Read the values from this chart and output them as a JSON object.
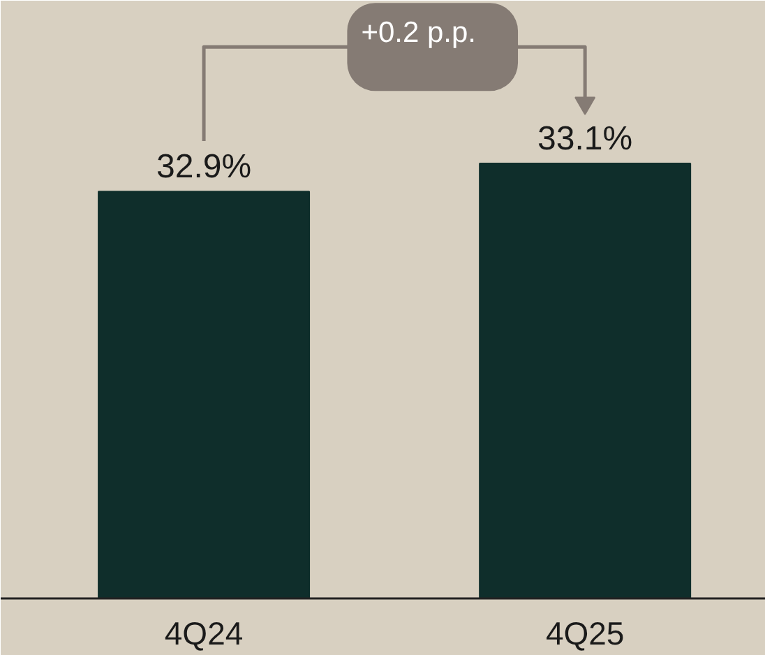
{
  "chart_data": {
    "type": "bar",
    "categories": [
      "4Q24",
      "4Q25"
    ],
    "values": [
      32.9,
      33.1
    ],
    "color": "#0f2e2b",
    "value_labels": [
      "32.9%",
      "33.1%"
    ],
    "ylim": [
      30,
      34.26
    ],
    "tick_labels": "x",
    "grid": false,
    "annotations": [
      "+0.2 p.p."
    ]
  }
}
